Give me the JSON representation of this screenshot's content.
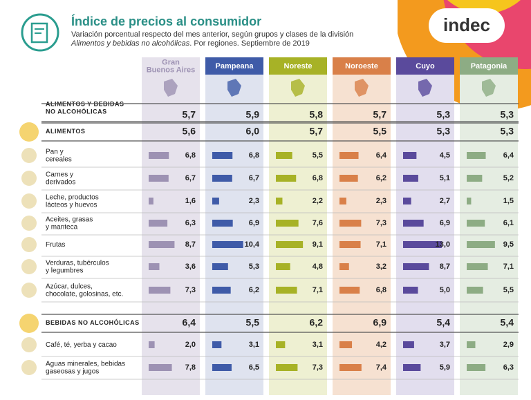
{
  "header": {
    "title": "Índice de precios al consumidor",
    "subtitle": "Variación porcentual respecto del mes anterior, según grupos y clases de la división",
    "subtitle_italic": "Alimentos y bebidas no alcohólicas",
    "subtitle_end": ". Por regiones. Septiembre de 2019",
    "logo": "indec"
  },
  "regions": [
    {
      "name": [
        "Gran",
        "Buenos Aires"
      ],
      "color": "#9d92b3",
      "background": "#e6e2ec"
    },
    {
      "name": [
        "Pampeana"
      ],
      "color": "#3f5ba8",
      "background": "#dfe3ef"
    },
    {
      "name": [
        "Noreste"
      ],
      "color": "#a7b226",
      "background": "#eef0d2"
    },
    {
      "name": [
        "Noroeste"
      ],
      "color": "#d98049",
      "background": "#f6e1d1"
    },
    {
      "name": [
        "Cuyo"
      ],
      "color": "#5a4a9c",
      "background": "#e2deee"
    },
    {
      "name": [
        "Patagonia"
      ],
      "color": "#8dac84",
      "background": "#e5ede2"
    }
  ],
  "rows": [
    {
      "label": [
        "ALIMENTOS Y BEBIDAS",
        "NO ALCOHÓLICAS"
      ],
      "level": "total",
      "values": [
        5.7,
        5.9,
        5.8,
        5.7,
        5.3,
        5.3
      ],
      "value_labels": [
        "5,7",
        "5,9",
        "5,8",
        "5,7",
        "5,3",
        "5,3"
      ]
    },
    {
      "label": [
        "ALIMENTOS"
      ],
      "level": "group",
      "values": [
        5.6,
        6.0,
        5.7,
        5.5,
        5.3,
        5.3
      ],
      "value_labels": [
        "5,6",
        "6,0",
        "5,7",
        "5,5",
        "5,3",
        "5,3"
      ]
    },
    {
      "label": [
        "Pan y",
        "cereales"
      ],
      "level": "item",
      "values": [
        6.8,
        6.8,
        5.5,
        6.4,
        4.5,
        6.4
      ],
      "value_labels": [
        "6,8",
        "6,8",
        "5,5",
        "6,4",
        "4,5",
        "6,4"
      ]
    },
    {
      "label": [
        "Carnes y",
        "derivados"
      ],
      "level": "item",
      "values": [
        6.7,
        6.7,
        6.8,
        6.2,
        5.1,
        5.2
      ],
      "value_labels": [
        "6,7",
        "6,7",
        "6,8",
        "6,2",
        "5,1",
        "5,2"
      ]
    },
    {
      "label": [
        "Leche, productos",
        "lácteos y huevos"
      ],
      "level": "item",
      "values": [
        1.6,
        2.3,
        2.2,
        2.3,
        2.7,
        1.5
      ],
      "value_labels": [
        "1,6",
        "2,3",
        "2,2",
        "2,3",
        "2,7",
        "1,5"
      ]
    },
    {
      "label": [
        "Aceites, grasas",
        "y manteca"
      ],
      "level": "item",
      "values": [
        6.3,
        6.9,
        7.6,
        7.3,
        6.9,
        6.1
      ],
      "value_labels": [
        "6,3",
        "6,9",
        "7,6",
        "7,3",
        "6,9",
        "6,1"
      ]
    },
    {
      "label": [
        "Frutas"
      ],
      "level": "item",
      "values": [
        8.7,
        10.4,
        9.1,
        7.1,
        13.0,
        9.5
      ],
      "value_labels": [
        "8,7",
        "10,4",
        "9,1",
        "7,1",
        "13,0",
        "9,5"
      ]
    },
    {
      "label": [
        "Verduras, tubérculos",
        "y legumbres"
      ],
      "level": "item",
      "values": [
        3.6,
        5.3,
        4.8,
        3.2,
        8.7,
        7.1
      ],
      "value_labels": [
        "3,6",
        "5,3",
        "4,8",
        "3,2",
        "8,7",
        "7,1"
      ]
    },
    {
      "label": [
        "Azúcar, dulces,",
        "chocolate, golosinas, etc."
      ],
      "level": "item",
      "values": [
        7.3,
        6.2,
        7.1,
        6.8,
        5.0,
        5.5
      ],
      "value_labels": [
        "7,3",
        "6,2",
        "7,1",
        "6,8",
        "5,0",
        "5,5"
      ]
    },
    {
      "label": [
        "BEBIDAS NO ALCOHÓLICAS"
      ],
      "level": "group",
      "values": [
        6.4,
        5.5,
        6.2,
        6.9,
        5.4,
        5.4
      ],
      "value_labels": [
        "6,4",
        "5,5",
        "6,2",
        "6,9",
        "5,4",
        "5,4"
      ]
    },
    {
      "label": [
        "Café, té, yerba y cacao"
      ],
      "level": "item",
      "values": [
        2.0,
        3.1,
        3.1,
        4.2,
        3.7,
        2.9
      ],
      "value_labels": [
        "2,0",
        "3,1",
        "3,1",
        "4,2",
        "3,7",
        "2,9"
      ]
    },
    {
      "label": [
        "Aguas minerales, bebidas",
        "gaseosas y jugos"
      ],
      "level": "item",
      "values": [
        7.8,
        6.5,
        7.3,
        7.4,
        5.9,
        6.3
      ],
      "value_labels": [
        "7,8",
        "6,5",
        "7,3",
        "7,4",
        "5,9",
        "6,3"
      ]
    }
  ]
}
